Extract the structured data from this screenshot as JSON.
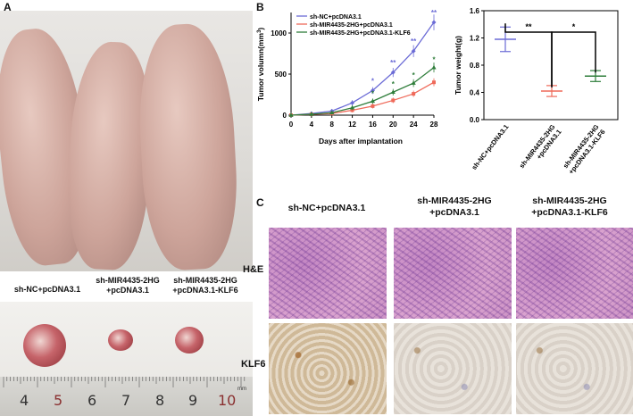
{
  "panels": {
    "a_label": "A",
    "b_label": "B",
    "c_label": "C"
  },
  "panel_a": {
    "groups": [
      {
        "line1": "sh-NC+pcDNA3.1",
        "line2": ""
      },
      {
        "line1": "sh-MIR4435-2HG",
        "line2": "+pcDNA3.1"
      },
      {
        "line1": "sh-MIR4435-2HG",
        "line2": "+pcDNA3.1-KLF6"
      }
    ],
    "ruler_numbers": [
      "4",
      "5",
      "6",
      "7",
      "8",
      "9",
      "10"
    ],
    "ruler_unit": "mm"
  },
  "panel_c": {
    "columns": [
      {
        "line1": "sh-NC+pcDNA3.1",
        "line2": ""
      },
      {
        "line1": "sh-MIR4435-2HG",
        "line2": "+pcDNA3.1"
      },
      {
        "line1": "sh-MIR4435-2HG",
        "line2": "+pcDNA3.1-KLF6"
      }
    ],
    "rows": [
      "H&E",
      "KLF6"
    ]
  },
  "colors": {
    "nc": "#6b6bd6",
    "mir": "#ef6a5a",
    "klf6": "#2e7d3a"
  },
  "chart_data": [
    {
      "type": "line",
      "title": "",
      "xlabel": "Days after implantation",
      "ylabel": "Tumor volumn(mm³)",
      "ylabel_text": "Tumor volumn(mm",
      "ylabel_sup": "3",
      "ylabel_close": ")",
      "x": [
        0,
        4,
        8,
        12,
        16,
        20,
        24,
        28
      ],
      "xlim": [
        0,
        28
      ],
      "ylim": [
        0,
        1250
      ],
      "yticks": [
        0,
        500,
        1000
      ],
      "legend_position": "top-left",
      "series": [
        {
          "name": "sh-NC+pcDNA3.1",
          "values": [
            0,
            20,
            50,
            150,
            300,
            520,
            780,
            1130
          ]
        },
        {
          "name": "sh-MIR4435-2HG+pcDNA3.1",
          "values": [
            0,
            10,
            20,
            60,
            110,
            180,
            260,
            400
          ]
        },
        {
          "name": "sh-MIR4435-2HG+pcDNA3.1-KLF6",
          "values": [
            0,
            12,
            30,
            90,
            170,
            280,
            390,
            580
          ]
        }
      ],
      "annotations": [
        {
          "x": 16,
          "text": "*"
        },
        {
          "x": 20,
          "text": "**"
        },
        {
          "x": 24,
          "text": "**"
        },
        {
          "x": 28,
          "text": "**"
        },
        {
          "x": 16,
          "text": "*"
        },
        {
          "x": 20,
          "text": "*"
        },
        {
          "x": 24,
          "text": "*"
        },
        {
          "x": 28,
          "text": "*"
        }
      ]
    },
    {
      "type": "scatter",
      "title": "",
      "xlabel": "",
      "ylabel": "Tumor weight(g)",
      "categories": [
        "sh-NC+pcDNA3.1",
        "sh-MIR4435-2HG +pcDNA3.1",
        "sh-MIR4435-2HG +pcDNA3.1-KLF6"
      ],
      "category_lines": [
        [
          "sh-NC+pcDNA3.1"
        ],
        [
          "sh-MIR4435-2HG",
          "+pcDNA3.1"
        ],
        [
          "sh-MIR4435-2HG",
          "+pcDNA3.1-KLF6"
        ]
      ],
      "means": [
        1.18,
        0.42,
        0.64
      ],
      "errors": [
        0.18,
        0.08,
        0.08
      ],
      "ylim": [
        0.0,
        1.6
      ],
      "yticks": [
        "0.0",
        "0.4",
        "0.8",
        "1.2",
        "1.6"
      ],
      "significance": [
        {
          "from": 0,
          "to": 1,
          "text": "**"
        },
        {
          "from": 1,
          "to": 2,
          "text": "*"
        }
      ]
    }
  ]
}
